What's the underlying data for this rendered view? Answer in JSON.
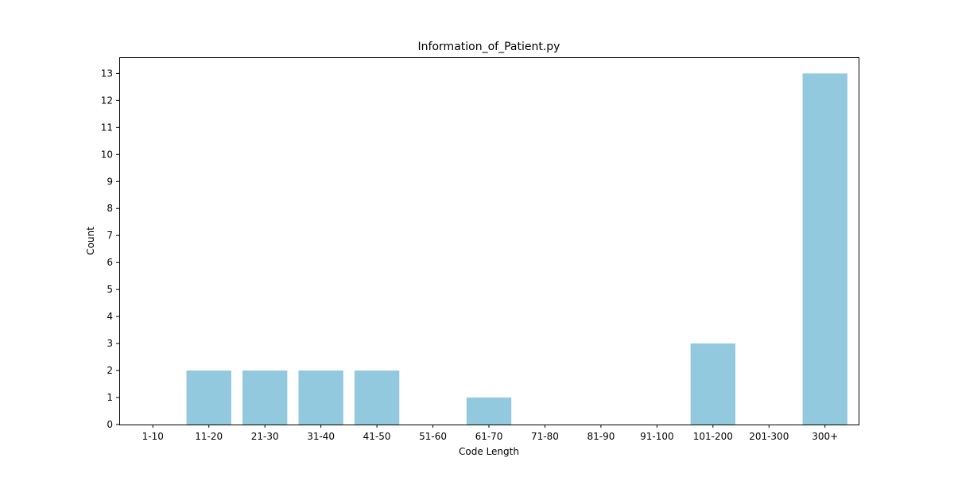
{
  "chart_data": {
    "type": "bar",
    "title": "Information_of_Patient.py",
    "xlabel": "Code Length",
    "ylabel": "Count",
    "categories": [
      "1-10",
      "11-20",
      "21-30",
      "31-40",
      "41-50",
      "51-60",
      "61-70",
      "71-80",
      "81-90",
      "91-100",
      "101-200",
      "201-300",
      "300+"
    ],
    "values": [
      0,
      2,
      2,
      2,
      2,
      0,
      1,
      0,
      0,
      0,
      3,
      0,
      13
    ],
    "ylim": [
      0,
      13.6
    ],
    "yticks": [
      0,
      1,
      2,
      3,
      4,
      5,
      6,
      7,
      8,
      9,
      10,
      11,
      12,
      13
    ],
    "grid": false,
    "bar_color": "#92c9de"
  }
}
